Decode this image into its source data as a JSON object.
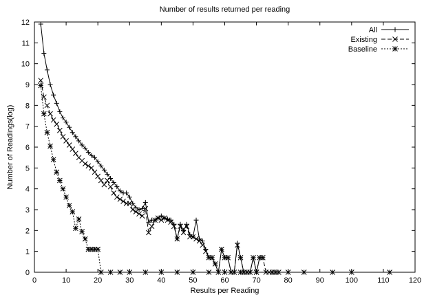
{
  "chart_data": {
    "type": "line",
    "title": "Number of results returned per reading",
    "xlabel": "Results per Reading",
    "ylabel": "Number of Readings(log)",
    "xlim": [
      0,
      120
    ],
    "ylim": [
      0,
      12
    ],
    "xticks": [
      0,
      10,
      20,
      30,
      40,
      50,
      60,
      70,
      80,
      90,
      100,
      110,
      120
    ],
    "yticks": [
      0,
      1,
      2,
      3,
      4,
      5,
      6,
      7,
      8,
      9,
      10,
      11,
      12
    ],
    "grid": false,
    "legend": "top-right",
    "series": [
      {
        "name": "All",
        "marker": "plus",
        "dash": "none",
        "x": [
          2,
          3,
          4,
          5,
          6,
          7,
          8,
          9,
          10,
          11,
          12,
          13,
          14,
          15,
          16,
          17,
          18,
          19,
          20,
          21,
          22,
          23,
          24,
          25,
          26,
          27,
          28,
          29,
          30,
          31,
          32,
          33,
          34,
          35,
          36,
          37,
          38,
          39,
          40,
          41,
          42,
          43,
          44,
          45,
          46,
          47,
          48,
          49,
          50,
          51,
          52,
          53,
          54,
          55,
          56,
          57,
          58,
          59,
          60,
          61,
          62,
          63,
          64,
          65,
          66,
          67,
          68,
          69,
          70,
          71,
          72
        ],
        "y": [
          11.9,
          10.5,
          9.7,
          9.0,
          8.5,
          8.1,
          7.7,
          7.4,
          7.2,
          6.95,
          6.7,
          6.5,
          6.3,
          6.1,
          5.95,
          5.75,
          5.6,
          5.5,
          5.3,
          5.1,
          4.9,
          4.7,
          4.5,
          4.3,
          4.1,
          3.9,
          3.8,
          3.8,
          3.6,
          3.3,
          3.1,
          3.0,
          3.05,
          3.35,
          2.4,
          2.5,
          2.5,
          2.6,
          2.7,
          2.6,
          2.55,
          2.5,
          2.3,
          1.6,
          2.3,
          2.0,
          2.3,
          1.8,
          1.7,
          2.5,
          1.6,
          1.5,
          1.1,
          0.7,
          0.7,
          0.4,
          0.0,
          1.1,
          0.7,
          0.7,
          0.0,
          0.0,
          1.4,
          0.7,
          0.0,
          0.0,
          0.0,
          0.7,
          0.0,
          0.7,
          0.7
        ]
      },
      {
        "name": "Existing",
        "marker": "x",
        "dash": "6,3",
        "x": [
          2,
          3,
          4,
          5,
          6,
          7,
          8,
          9,
          10,
          11,
          12,
          13,
          14,
          15,
          16,
          17,
          18,
          19,
          20,
          21,
          22,
          23,
          24,
          25,
          26,
          27,
          28,
          29,
          30,
          31,
          32,
          33,
          34,
          35,
          36,
          37,
          38,
          39,
          40,
          41,
          42,
          43,
          44,
          45,
          46,
          47,
          48,
          49,
          50,
          51,
          52,
          53,
          54,
          55,
          56,
          57,
          58,
          59,
          60,
          61,
          62,
          63,
          64,
          65,
          66,
          67,
          68,
          69,
          70,
          71,
          72,
          73,
          74
        ],
        "y": [
          9.2,
          8.4,
          8.0,
          7.6,
          7.3,
          7.1,
          6.8,
          6.5,
          6.3,
          6.1,
          5.9,
          5.7,
          5.5,
          5.35,
          5.2,
          5.1,
          5.0,
          4.8,
          4.6,
          4.4,
          4.2,
          4.4,
          4.1,
          3.8,
          3.6,
          3.5,
          3.4,
          3.3,
          3.3,
          3.0,
          2.9,
          2.8,
          2.7,
          3.05,
          1.9,
          2.2,
          2.5,
          2.6,
          2.5,
          2.6,
          2.5,
          2.4,
          2.2,
          1.6,
          2.2,
          1.9,
          2.2,
          1.7,
          1.7,
          1.6,
          1.5,
          1.3,
          1.0,
          0.7,
          0.7,
          0.4,
          0.0,
          1.1,
          0.7,
          0.7,
          0.0,
          0.0,
          1.3,
          0.7,
          0.0,
          0.0,
          0.0,
          0.7,
          0.0,
          0.7,
          0.7,
          0.0,
          0.0
        ]
      },
      {
        "name": "Baseline",
        "marker": "star",
        "dash": "2,2",
        "x": [
          2,
          3,
          4,
          5,
          6,
          7,
          8,
          9,
          10,
          11,
          12,
          13,
          14,
          15,
          16,
          17,
          18,
          19,
          20,
          21,
          24,
          27,
          30,
          35,
          40,
          45,
          50,
          55,
          60,
          65,
          70,
          75,
          76,
          77,
          80,
          85,
          94,
          100,
          112
        ],
        "y": [
          8.95,
          7.6,
          6.7,
          6.05,
          5.4,
          4.8,
          4.4,
          4.0,
          3.6,
          3.2,
          2.9,
          2.1,
          2.55,
          1.95,
          1.6,
          1.1,
          1.1,
          1.1,
          1.1,
          0.0,
          0.0,
          0.0,
          0.0,
          0.0,
          0.0,
          0.0,
          0.0,
          0.0,
          0.0,
          0.0,
          0.0,
          0.0,
          0.0,
          0.0,
          0.0,
          0.0,
          0.0,
          0.0,
          0.0
        ]
      }
    ]
  }
}
